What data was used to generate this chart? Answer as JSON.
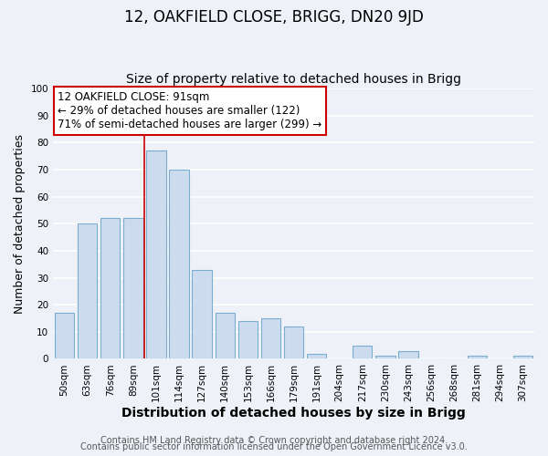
{
  "title": "12, OAKFIELD CLOSE, BRIGG, DN20 9JD",
  "subtitle": "Size of property relative to detached houses in Brigg",
  "xlabel": "Distribution of detached houses by size in Brigg",
  "ylabel": "Number of detached properties",
  "categories": [
    "50sqm",
    "63sqm",
    "76sqm",
    "89sqm",
    "101sqm",
    "114sqm",
    "127sqm",
    "140sqm",
    "153sqm",
    "166sqm",
    "179sqm",
    "191sqm",
    "204sqm",
    "217sqm",
    "230sqm",
    "243sqm",
    "256sqm",
    "268sqm",
    "281sqm",
    "294sqm",
    "307sqm"
  ],
  "values": [
    17,
    50,
    52,
    52,
    77,
    70,
    33,
    17,
    14,
    15,
    12,
    2,
    0,
    5,
    1,
    3,
    0,
    0,
    1,
    0,
    1
  ],
  "bar_color": "#ccdcee",
  "bar_edge_color": "#7aacd0",
  "vline_color": "#cc0000",
  "annotation_text": "12 OAKFIELD CLOSE: 91sqm\n← 29% of detached houses are smaller (122)\n71% of semi-detached houses are larger (299) →",
  "annotation_box_color": "white",
  "annotation_box_edge_color": "#cc0000",
  "ylim": [
    0,
    100
  ],
  "yticks": [
    0,
    10,
    20,
    30,
    40,
    50,
    60,
    70,
    80,
    90,
    100
  ],
  "footer_line1": "Contains HM Land Registry data © Crown copyright and database right 2024.",
  "footer_line2": "Contains public sector information licensed under the Open Government Licence v3.0.",
  "background_color": "#eef2f8",
  "grid_color": "#ffffff",
  "title_fontsize": 12,
  "subtitle_fontsize": 10,
  "xlabel_fontsize": 10,
  "ylabel_fontsize": 9,
  "tick_fontsize": 7.5,
  "annotation_fontsize": 8.5,
  "footer_fontsize": 7
}
